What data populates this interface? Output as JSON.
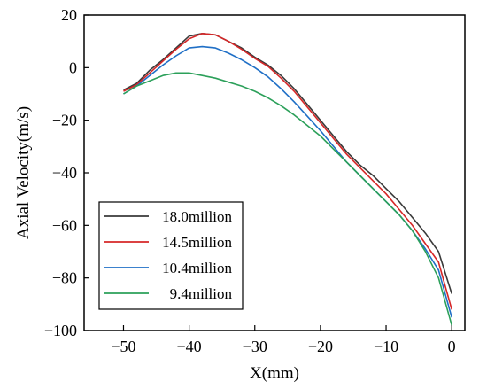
{
  "chart_data": {
    "type": "line",
    "xlabel": "X(mm)",
    "ylabel": "Axial Velocity(m/s)",
    "xlim": [
      -56,
      2
    ],
    "ylim": [
      -100,
      20
    ],
    "xticks": [
      -50,
      -40,
      -30,
      -20,
      -10,
      0
    ],
    "yticks": [
      20,
      0,
      -20,
      -40,
      -60,
      -80,
      -100
    ],
    "xtick_labels": [
      "−50",
      "−40",
      "−30",
      "−20",
      "−10",
      "0"
    ],
    "ytick_labels": [
      "20",
      "0",
      "−20",
      "−40",
      "−60",
      "−80",
      "−100"
    ],
    "legend_position": "bottom-left",
    "series": [
      {
        "name": "18.0million",
        "color": "#3a3a3a",
        "points": [
          [
            -50,
            -8.5
          ],
          [
            -48,
            -6
          ],
          [
            -46,
            -1
          ],
          [
            -44,
            3
          ],
          [
            -42,
            7.5
          ],
          [
            -40,
            12
          ],
          [
            -38,
            13
          ],
          [
            -36,
            12.5
          ],
          [
            -34,
            10
          ],
          [
            -32,
            7.5
          ],
          [
            -30,
            4
          ],
          [
            -28,
            1
          ],
          [
            -26,
            -3
          ],
          [
            -24,
            -8
          ],
          [
            -22,
            -14
          ],
          [
            -20,
            -20
          ],
          [
            -18,
            -26
          ],
          [
            -16,
            -32
          ],
          [
            -14,
            -37
          ],
          [
            -12,
            -41
          ],
          [
            -10,
            -46
          ],
          [
            -8,
            -51
          ],
          [
            -6,
            -57
          ],
          [
            -4,
            -63
          ],
          [
            -2,
            -70
          ],
          [
            0,
            -86
          ]
        ]
      },
      {
        "name": "14.5million",
        "color": "#d62728",
        "points": [
          [
            -50,
            -9
          ],
          [
            -48,
            -6.5
          ],
          [
            -46,
            -2
          ],
          [
            -44,
            2.5
          ],
          [
            -42,
            7
          ],
          [
            -40,
            11
          ],
          [
            -38,
            13
          ],
          [
            -36,
            12.5
          ],
          [
            -34,
            10
          ],
          [
            -32,
            7
          ],
          [
            -30,
            3.5
          ],
          [
            -28,
            0.5
          ],
          [
            -26,
            -4
          ],
          [
            -24,
            -9
          ],
          [
            -22,
            -15
          ],
          [
            -20,
            -21
          ],
          [
            -18,
            -27
          ],
          [
            -16,
            -33
          ],
          [
            -14,
            -38
          ],
          [
            -12,
            -43
          ],
          [
            -10,
            -48
          ],
          [
            -8,
            -54
          ],
          [
            -6,
            -60
          ],
          [
            -4,
            -67
          ],
          [
            -2,
            -74
          ],
          [
            0,
            -92
          ]
        ]
      },
      {
        "name": "10.4million",
        "color": "#1f6fc6",
        "points": [
          [
            -50,
            -10
          ],
          [
            -48,
            -7
          ],
          [
            -46,
            -3
          ],
          [
            -44,
            1
          ],
          [
            -42,
            4.5
          ],
          [
            -40,
            7.5
          ],
          [
            -38,
            8
          ],
          [
            -36,
            7.5
          ],
          [
            -34,
            5.5
          ],
          [
            -32,
            3
          ],
          [
            -30,
            0
          ],
          [
            -28,
            -3.5
          ],
          [
            -26,
            -8
          ],
          [
            -24,
            -13
          ],
          [
            -22,
            -18.5
          ],
          [
            -20,
            -24
          ],
          [
            -18,
            -30
          ],
          [
            -16,
            -36
          ],
          [
            -14,
            -41
          ],
          [
            -12,
            -46
          ],
          [
            -10,
            -51
          ],
          [
            -8,
            -56
          ],
          [
            -6,
            -62
          ],
          [
            -4,
            -69
          ],
          [
            -2,
            -77
          ],
          [
            0,
            -95
          ]
        ]
      },
      {
        "name": "9.4million",
        "color": "#2ca05a",
        "points": [
          [
            -50,
            -10
          ],
          [
            -48,
            -7
          ],
          [
            -46,
            -5
          ],
          [
            -44,
            -3
          ],
          [
            -42,
            -2
          ],
          [
            -40,
            -2
          ],
          [
            -38,
            -3
          ],
          [
            -36,
            -4
          ],
          [
            -34,
            -5.5
          ],
          [
            -32,
            -7
          ],
          [
            -30,
            -9
          ],
          [
            -28,
            -11.5
          ],
          [
            -26,
            -14.5
          ],
          [
            -24,
            -18
          ],
          [
            -22,
            -22
          ],
          [
            -20,
            -26
          ],
          [
            -18,
            -31
          ],
          [
            -16,
            -36
          ],
          [
            -14,
            -41
          ],
          [
            -12,
            -46
          ],
          [
            -10,
            -51
          ],
          [
            -8,
            -56
          ],
          [
            -6,
            -62
          ],
          [
            -4,
            -70
          ],
          [
            -2,
            -80
          ],
          [
            0,
            -98
          ]
        ]
      }
    ]
  }
}
